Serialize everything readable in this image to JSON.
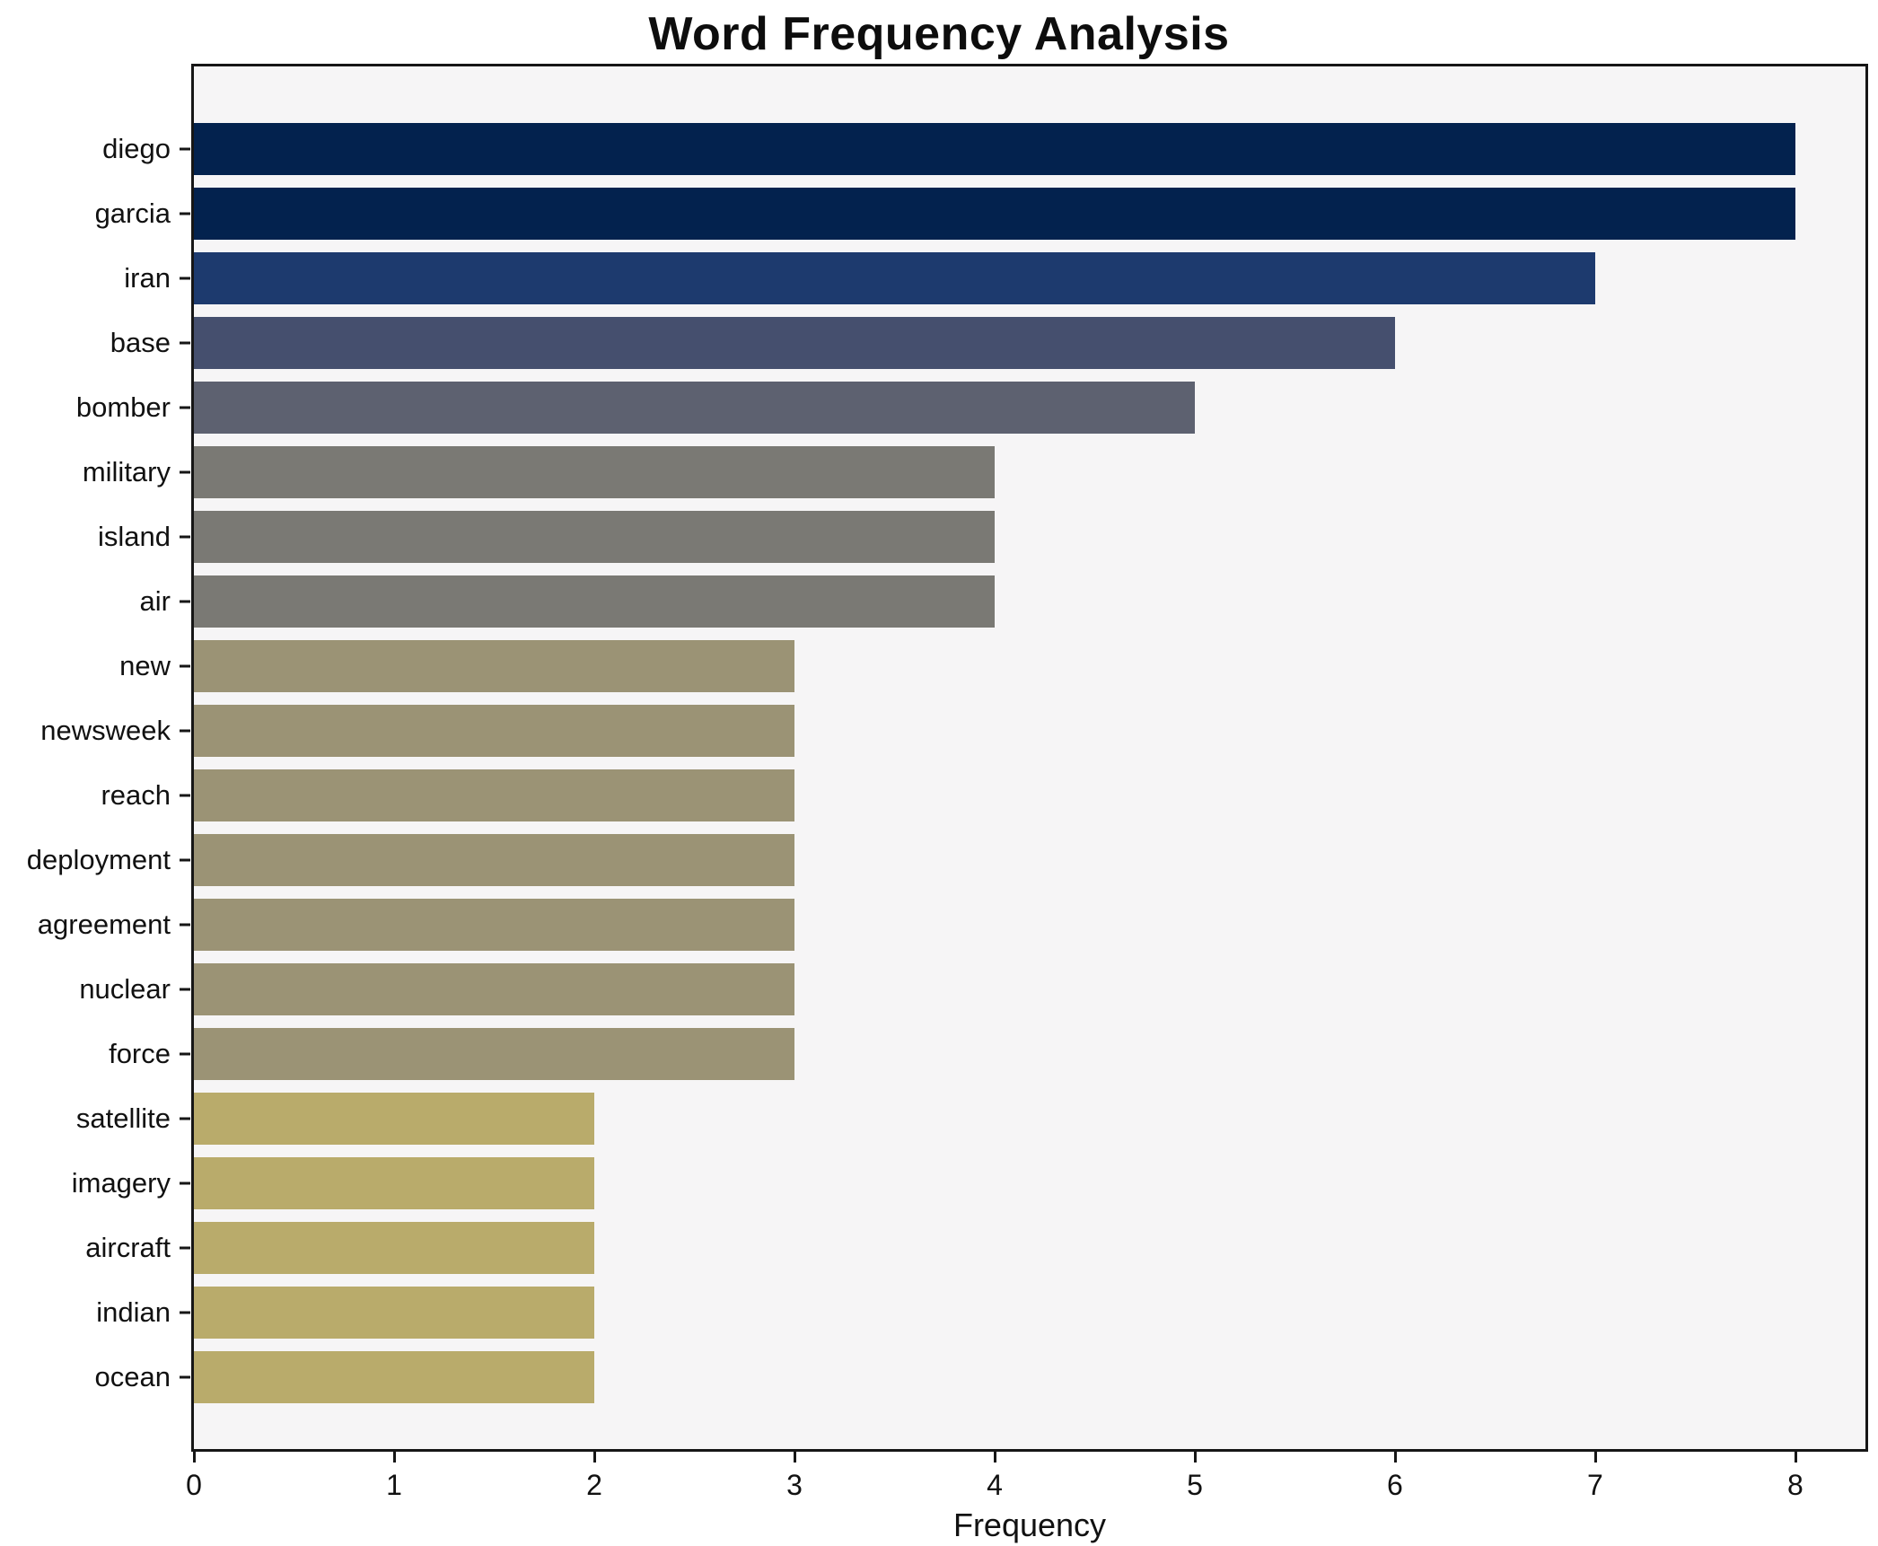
{
  "title": "Word Frequency Analysis",
  "chart_data": {
    "type": "bar",
    "orientation": "horizontal",
    "title": "Word Frequency Analysis",
    "xlabel": "Frequency",
    "ylabel": "",
    "grid": false,
    "legend": null,
    "xlim": [
      0,
      8.35
    ],
    "xticks": [
      0,
      1,
      2,
      3,
      4,
      5,
      6,
      7,
      8
    ],
    "categories": [
      "diego",
      "garcia",
      "iran",
      "base",
      "bomber",
      "military",
      "island",
      "air",
      "new",
      "newsweek",
      "reach",
      "deployment",
      "agreement",
      "nuclear",
      "force",
      "satellite",
      "imagery",
      "aircraft",
      "indian",
      "ocean"
    ],
    "values": [
      8,
      8,
      7,
      6,
      5,
      4,
      4,
      4,
      3,
      3,
      3,
      3,
      3,
      3,
      3,
      2,
      2,
      2,
      2,
      2
    ],
    "bar_colors": [
      "#03224e",
      "#03224e",
      "#1d3a6e",
      "#454f6e",
      "#5d6170",
      "#7a7974",
      "#7a7974",
      "#7a7974",
      "#9b9375",
      "#9b9375",
      "#9b9375",
      "#9b9375",
      "#9b9375",
      "#9b9375",
      "#9b9375",
      "#b9ab6b",
      "#b9ab6b",
      "#b9ab6b",
      "#b9ab6b",
      "#b9ab6b"
    ]
  },
  "colors": {
    "page_background": "#ffffff",
    "plot_background": "#f6f5f6",
    "spine": "#161616",
    "text": "#111111"
  }
}
